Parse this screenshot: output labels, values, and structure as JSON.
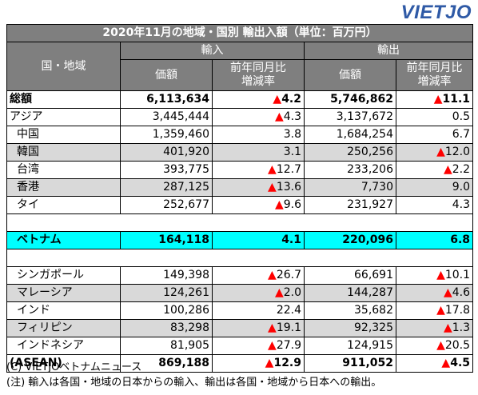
{
  "brand": {
    "logo_text": "VIETJO",
    "logo_color": "#2f5aa6"
  },
  "table": {
    "title": "2020年11月の地域・国別 輸出入額（単位：百万円）",
    "row_header": "国・地域",
    "import_label": "輸入",
    "export_label": "輸出",
    "value_label": "価額",
    "yoy_label_line1": "前年同月比",
    "yoy_label_line2": "増減率",
    "rows": [
      {
        "name": "総額",
        "imp": "6,113,634",
        "imp_yoy": "4.2",
        "imp_neg": true,
        "exp": "5,746,862",
        "exp_yoy": "11.1",
        "exp_neg": true
      },
      {
        "name": "アジア",
        "imp": "3,445,444",
        "imp_yoy": "4.3",
        "imp_neg": true,
        "exp": "3,137,672",
        "exp_yoy": "0.5",
        "exp_neg": false
      },
      {
        "name": "中国",
        "imp": "1,359,460",
        "imp_yoy": "3.8",
        "imp_neg": false,
        "exp": "1,684,254",
        "exp_yoy": "6.7",
        "exp_neg": false
      },
      {
        "name": "韓国",
        "imp": "401,920",
        "imp_yoy": "3.1",
        "imp_neg": false,
        "exp": "250,256",
        "exp_yoy": "12.0",
        "exp_neg": true
      },
      {
        "name": "台湾",
        "imp": "393,775",
        "imp_yoy": "12.7",
        "imp_neg": true,
        "exp": "233,206",
        "exp_yoy": "2.2",
        "exp_neg": true
      },
      {
        "name": "香港",
        "imp": "287,125",
        "imp_yoy": "13.6",
        "imp_neg": true,
        "exp": "7,730",
        "exp_yoy": "9.0",
        "exp_neg": false
      },
      {
        "name": "タイ",
        "imp": "252,677",
        "imp_yoy": "9.6",
        "imp_neg": true,
        "exp": "231,927",
        "exp_yoy": "4.3",
        "exp_neg": false
      },
      {
        "name": "ベトナム",
        "imp": "164,118",
        "imp_yoy": "4.1",
        "imp_neg": false,
        "exp": "220,096",
        "exp_yoy": "6.8",
        "exp_neg": false
      },
      {
        "name": "シンガポール",
        "imp": "149,398",
        "imp_yoy": "26.7",
        "imp_neg": true,
        "exp": "66,691",
        "exp_yoy": "10.1",
        "exp_neg": true
      },
      {
        "name": "マレーシア",
        "imp": "124,261",
        "imp_yoy": "2.0",
        "imp_neg": true,
        "exp": "144,287",
        "exp_yoy": "4.6",
        "exp_neg": true
      },
      {
        "name": "インド",
        "imp": "100,286",
        "imp_yoy": "22.4",
        "imp_neg": false,
        "exp": "35,682",
        "exp_yoy": "17.8",
        "exp_neg": true
      },
      {
        "name": "フィリピン",
        "imp": "83,298",
        "imp_yoy": "19.1",
        "imp_neg": true,
        "exp": "92,325",
        "exp_yoy": "1.3",
        "exp_neg": true
      },
      {
        "name": "インドネシア",
        "imp": "81,905",
        "imp_yoy": "27.9",
        "imp_neg": true,
        "exp": "124,915",
        "exp_yoy": "20.5",
        "exp_neg": true
      },
      {
        "name": "(ASEAN)",
        "imp": "869,188",
        "imp_yoy": "12.9",
        "imp_neg": true,
        "exp": "911,052",
        "exp_yoy": "4.5",
        "exp_neg": true
      }
    ]
  },
  "footer": {
    "source": "(C) VIETJOベトナムニュース",
    "note": "(注) 輸入は各国・地域の日本からの輸入、輸出は各国・地域から日本への輸出。"
  },
  "colors": {
    "header_bg": "#7f7f7f",
    "shade_bg": "#d9d9d9",
    "highlight_bg": "#00ffff",
    "negative_marker": "#ff0000"
  }
}
